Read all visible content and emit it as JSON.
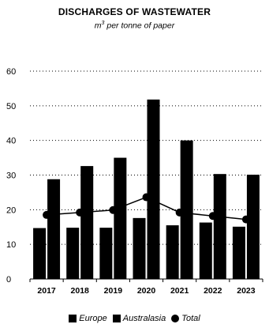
{
  "chart_data": {
    "type": "bar",
    "title": "DISCHARGES OF WASTEWATER",
    "subtitle": {
      "base": "m",
      "sup": "3",
      "rest": " per tonne of paper"
    },
    "categories": [
      "2017",
      "2018",
      "2019",
      "2020",
      "2021",
      "2022",
      "2023"
    ],
    "series": [
      {
        "name": "Europe",
        "kind": "bar",
        "values": [
          14.7,
          14.8,
          14.8,
          17.6,
          15.5,
          16.3,
          15.1
        ]
      },
      {
        "name": "Australasia",
        "kind": "bar",
        "values": [
          28.8,
          32.6,
          35.0,
          51.8,
          40.0,
          30.3,
          30.1
        ]
      },
      {
        "name": "Total",
        "kind": "line",
        "values": [
          18.5,
          19.2,
          19.9,
          23.6,
          19.2,
          18.2,
          17.2
        ]
      }
    ],
    "ylim": [
      0,
      60
    ],
    "yticks": [
      0,
      10,
      20,
      30,
      40,
      50,
      60
    ],
    "grid": "dotted",
    "legend_position": "bottom",
    "colors": {
      "europe": "#000000",
      "australasia": "#000000",
      "total": "#000000"
    }
  }
}
